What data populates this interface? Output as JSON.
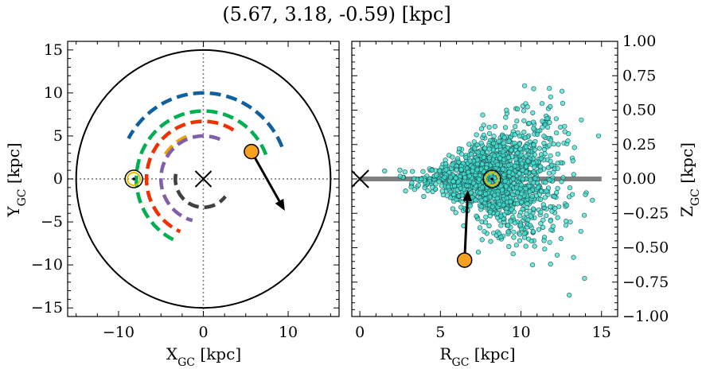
{
  "chart_data": [
    {
      "type": "scatter",
      "title": "(5.67, 3.18, -0.59) [kpc]",
      "xlabel": "X_GC [kpc]",
      "ylabel": "Y_GC [kpc]",
      "xlim": [
        -16,
        16
      ],
      "ylim": [
        -16,
        16
      ],
      "xticks": [
        -10,
        0,
        10
      ],
      "yticks": [
        -15,
        -10,
        -5,
        0,
        5,
        10,
        15
      ],
      "tick_labels_x": [
        "−10",
        "0",
        "10"
      ],
      "tick_labels_y": [
        "−15",
        "−10",
        "−5",
        "0",
        "5",
        "10",
        "15"
      ],
      "boundary_circle_radius": 15,
      "galactic_center": [
        0,
        0
      ],
      "sun": [
        -8.2,
        0
      ],
      "object": [
        5.67,
        3.18
      ],
      "velocity_arrow_end": [
        9.6,
        -3.7
      ],
      "spiral_arms": [
        {
          "color": "#1060a0",
          "radius": 10.0,
          "theta_deg": [
            22,
            153
          ]
        },
        {
          "color": "#00b050",
          "radius": 7.9,
          "theta_deg": [
            21,
            248
          ]
        },
        {
          "color": "#f0a000",
          "radius": 5.3,
          "theta_deg": [
            112,
            151
          ]
        },
        {
          "color": "#f03000",
          "radius": 6.7,
          "theta_deg": [
            58,
            246
          ]
        },
        {
          "color": "#8060a8",
          "radius": 5.0,
          "theta_deg": [
            67,
            255
          ]
        },
        {
          "color": "#404040",
          "radius": 3.3,
          "theta_deg": [
            170,
            323
          ]
        }
      ],
      "grid": false
    },
    {
      "type": "scatter",
      "xlabel": "R_GC [kpc]",
      "ylabel": "Z_GC [kpc]",
      "xlim": [
        -0.5,
        16
      ],
      "ylim": [
        -1.0,
        1.0
      ],
      "xticks": [
        0,
        5,
        10,
        15
      ],
      "yticks": [
        -1.0,
        -0.75,
        -0.5,
        -0.25,
        0.0,
        0.25,
        0.5,
        0.75,
        1.0
      ],
      "tick_labels_x": [
        "0",
        "5",
        "10",
        "15"
      ],
      "tick_labels_y": [
        "−1.00",
        "−0.75",
        "−0.50",
        "−0.25",
        "0.00",
        "0.25",
        "0.50",
        "0.75",
        "1.00"
      ],
      "disk_line": {
        "x": [
          0,
          15
        ],
        "z": 0
      },
      "galactic_center": [
        0,
        0
      ],
      "sun": [
        8.2,
        0
      ],
      "object": [
        6.5,
        -0.59
      ],
      "velocity_arrow_end": [
        6.7,
        -0.08
      ],
      "star_cloud": {
        "color": "#40e0d0",
        "edge": "#205050",
        "center_r": 8.5,
        "center_z": 0.0,
        "count": 1500
      },
      "grid": false
    }
  ],
  "colors": {
    "sun_ring": "#e0c000",
    "object_fill": "#f8a020",
    "disk": "#808080"
  }
}
